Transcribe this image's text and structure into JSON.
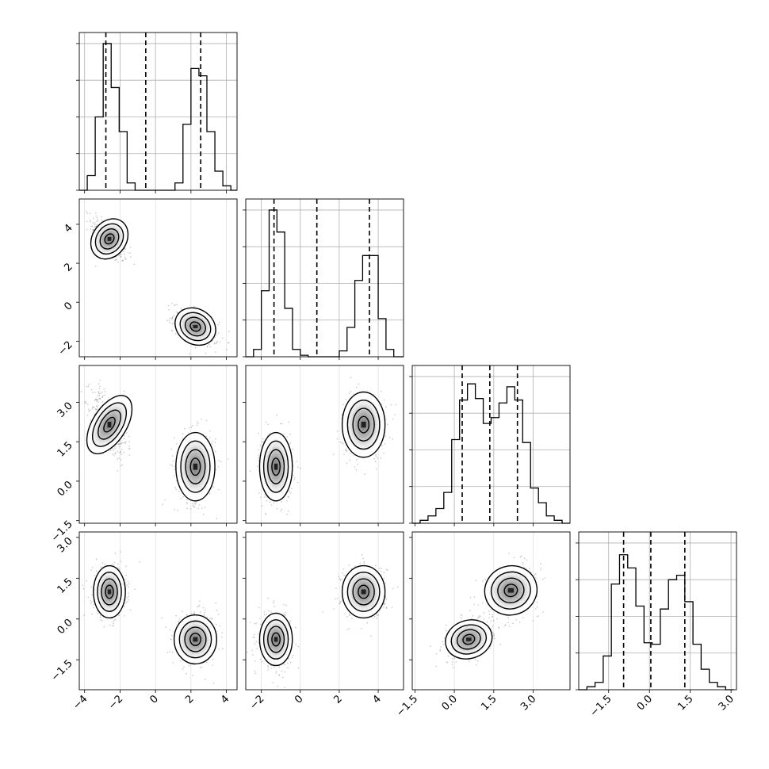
{
  "chart_data": {
    "type": "corner",
    "parameters": 4,
    "grid": true,
    "colors": {
      "ink": "#000000",
      "grid": "#b0b0b0",
      "points": "#808080"
    },
    "diagonal": [
      {
        "param": 0,
        "range": [
          -4.3,
          4.6
        ],
        "edges": [
          -4.3,
          -3.85,
          -3.4,
          -2.95,
          -2.5,
          -2.05,
          -1.6,
          -1.15,
          -0.7,
          -0.25,
          0.2,
          0.65,
          1.1,
          1.55,
          2.0,
          2.45,
          2.9,
          3.35,
          3.8,
          4.25,
          4.6
        ],
        "counts": [
          0,
          0.1,
          0.5,
          1.0,
          0.7,
          0.4,
          0.05,
          0,
          0,
          0,
          0,
          0,
          0.05,
          0.45,
          0.83,
          0.78,
          0.4,
          0.13,
          0.03,
          0
        ],
        "quantiles": [
          -2.8,
          -0.55,
          2.55
        ]
      },
      {
        "param": 1,
        "range": [
          -2.8,
          5.3
        ],
        "edges": [
          -2.8,
          -2.4,
          -2.0,
          -1.6,
          -1.2,
          -0.8,
          -0.4,
          0.0,
          0.4,
          0.8,
          1.2,
          1.6,
          2.0,
          2.4,
          2.8,
          3.2,
          3.6,
          4.0,
          4.4,
          4.8,
          5.3
        ],
        "counts": [
          0,
          0.05,
          0.45,
          1.0,
          0.85,
          0.33,
          0.05,
          0.01,
          0,
          0,
          0,
          0,
          0.04,
          0.2,
          0.52,
          0.69,
          0.69,
          0.26,
          0.05,
          0
        ],
        "quantiles": [
          -1.35,
          0.85,
          3.55
        ]
      },
      {
        "param": 2,
        "range": [
          -1.6,
          4.4
        ],
        "edges": [
          -1.6,
          -1.3,
          -1.0,
          -0.7,
          -0.4,
          -0.1,
          0.2,
          0.5,
          0.8,
          1.1,
          1.4,
          1.7,
          2.0,
          2.3,
          2.6,
          2.9,
          3.2,
          3.5,
          3.8,
          4.1,
          4.4
        ],
        "counts": [
          0,
          0.02,
          0.05,
          0.1,
          0.21,
          0.57,
          0.84,
          0.95,
          0.85,
          0.68,
          0.72,
          0.82,
          0.93,
          0.84,
          0.55,
          0.24,
          0.14,
          0.05,
          0.02,
          0
        ],
        "quantiles": [
          0.3,
          1.35,
          2.4
        ]
      },
      {
        "param": 3,
        "range": [
          -2.6,
          3.2
        ],
        "edges": [
          -2.6,
          -2.3,
          -2.0,
          -1.7,
          -1.4,
          -1.1,
          -0.8,
          -0.5,
          -0.2,
          0.1,
          0.4,
          0.7,
          1.0,
          1.3,
          1.6,
          1.9,
          2.2,
          2.5,
          2.8,
          3.1
        ],
        "counts": [
          0,
          0.02,
          0.05,
          0.23,
          0.72,
          0.92,
          0.83,
          0.57,
          0.32,
          0.31,
          0.55,
          0.75,
          0.78,
          0.6,
          0.31,
          0.14,
          0.05,
          0.02,
          0
        ],
        "quantiles": [
          -0.95,
          0.05,
          1.3
        ]
      }
    ],
    "pairs": [
      {
        "x": 0,
        "y": 1,
        "modes": [
          {
            "mx": -2.6,
            "my": 3.25,
            "sx": 0.48,
            "sy": 0.55,
            "rho": -0.6
          },
          {
            "mx": 2.25,
            "my": -1.25,
            "sx": 0.6,
            "sy": 0.45,
            "rho": -0.55
          }
        ]
      },
      {
        "x": 0,
        "y": 2,
        "modes": [
          {
            "mx": -2.6,
            "my": 2.15,
            "sx": 0.48,
            "sy": 0.62,
            "rho": -0.55
          },
          {
            "mx": 2.25,
            "my": 0.55,
            "sx": 0.55,
            "sy": 0.65,
            "rho": 0.0
          }
        ]
      },
      {
        "x": 1,
        "y": 2,
        "modes": [
          {
            "mx": -1.25,
            "my": 0.55,
            "sx": 0.42,
            "sy": 0.65,
            "rho": 0.0
          },
          {
            "mx": 3.25,
            "my": 2.15,
            "sx": 0.55,
            "sy": 0.62,
            "rho": 0.0
          }
        ]
      },
      {
        "x": 0,
        "y": 3,
        "modes": [
          {
            "mx": -2.6,
            "my": 1.0,
            "sx": 0.45,
            "sy": 0.48,
            "rho": 0.0
          },
          {
            "mx": 2.25,
            "my": -0.75,
            "sx": 0.6,
            "sy": 0.45,
            "rho": 0.0
          }
        ]
      },
      {
        "x": 1,
        "y": 3,
        "modes": [
          {
            "mx": -1.25,
            "my": -0.75,
            "sx": 0.42,
            "sy": 0.48,
            "rho": 0.0
          },
          {
            "mx": 3.25,
            "my": 1.0,
            "sx": 0.55,
            "sy": 0.48,
            "rho": 0.0
          }
        ]
      },
      {
        "x": 2,
        "y": 3,
        "modes": [
          {
            "mx": 0.55,
            "my": -0.75,
            "sx": 0.45,
            "sy": 0.35,
            "rho": 0.3
          },
          {
            "mx": 2.15,
            "my": 1.05,
            "sx": 0.5,
            "sy": 0.45,
            "rho": 0.3
          }
        ]
      }
    ],
    "axes": {
      "x": [
        {
          "param": 0,
          "ticks": [
            -4,
            -2,
            0,
            2,
            4
          ],
          "labels": [
            "−4",
            "−2",
            "0",
            "2",
            "4"
          ]
        },
        {
          "param": 1,
          "ticks": [
            -2,
            0,
            2,
            4
          ],
          "labels": [
            "−2",
            "0",
            "2",
            "4"
          ]
        },
        {
          "param": 2,
          "ticks": [
            -1.5,
            0.0,
            1.5,
            3.0
          ],
          "labels": [
            "−1.5",
            "0.0",
            "1.5",
            "3.0"
          ]
        },
        {
          "param": 3,
          "ticks": [
            -1.5,
            0.0,
            1.5,
            3.0
          ],
          "labels": [
            "−1.5",
            "0.0",
            "1.5",
            "3.0"
          ]
        }
      ],
      "y": [
        {
          "param": 1,
          "ticks": [
            -2,
            0,
            2,
            4
          ],
          "labels": [
            "−2",
            "0",
            "2",
            "4"
          ]
        },
        {
          "param": 2,
          "ticks": [
            -1.5,
            0.0,
            1.5,
            3.0
          ],
          "labels": [
            "−1.5",
            "0.0",
            "1.5",
            "3.0"
          ]
        },
        {
          "param": 3,
          "ticks": [
            -1.5,
            0.0,
            1.5,
            3.0
          ],
          "labels": [
            "−1.5",
            "0.0",
            "1.5",
            "3.0"
          ]
        }
      ]
    }
  }
}
